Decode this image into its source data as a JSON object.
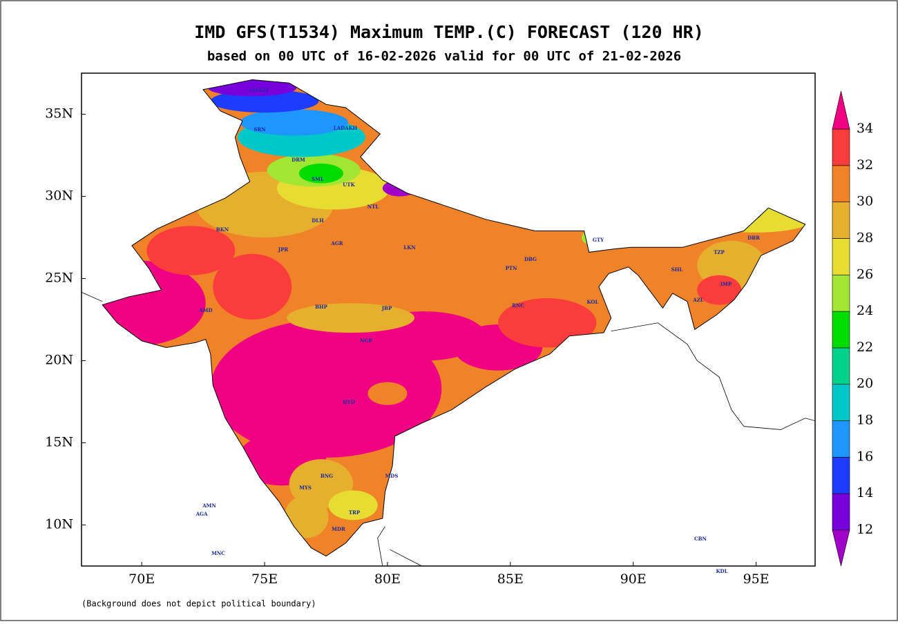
{
  "chart_data": {
    "type": "map",
    "title": "IMD GFS(T1534) Maximum TEMP.(C) FORECAST (120 HR)",
    "subtitle": "based on 00 UTC of 16-02-2026 valid for 00 UTC of 21-02-2026",
    "footnote": "(Background does not depict political boundary)",
    "xlim": [
      67.55,
      97.4
    ],
    "ylim": [
      7.5,
      37.5
    ],
    "xticks": [
      {
        "value": 70,
        "label": "70E"
      },
      {
        "value": 75,
        "label": "75E"
      },
      {
        "value": 80,
        "label": "80E"
      },
      {
        "value": 85,
        "label": "85E"
      },
      {
        "value": 90,
        "label": "90E"
      },
      {
        "value": 95,
        "label": "95E"
      }
    ],
    "yticks": [
      {
        "value": 10,
        "label": "10N"
      },
      {
        "value": 15,
        "label": "15N"
      },
      {
        "value": 20,
        "label": "20N"
      },
      {
        "value": 25,
        "label": "25N"
      },
      {
        "value": 30,
        "label": "30N"
      },
      {
        "value": 35,
        "label": "35N"
      }
    ],
    "colorbar": {
      "levels": [
        12,
        14,
        16,
        18,
        20,
        22,
        24,
        26,
        28,
        30,
        32,
        34
      ],
      "colors": [
        "#a000c8",
        "#7800dc",
        "#1e3cff",
        "#1e96ff",
        "#00c8c8",
        "#00d28c",
        "#00dc00",
        "#a0e632",
        "#e6dc32",
        "#e6af2d",
        "#f08228",
        "#fa3c3c",
        "#f00082"
      ]
    },
    "stations": [
      "GILGIT",
      "SRN",
      "LADAKH",
      "DRM",
      "SML",
      "UTK",
      "NTL",
      "DLH",
      "BKN",
      "JPR",
      "AGR",
      "LKN",
      "PTN",
      "DBG",
      "GTY",
      "SHL",
      "TZP",
      "DBR",
      "IMP",
      "AZL",
      "KOL",
      "RNC",
      "JBP",
      "AMD",
      "BHP",
      "NGP",
      "HYD",
      "MDS",
      "BNG",
      "MYS",
      "TRP",
      "MDR",
      "AMN",
      "AGA",
      "MNC",
      "CBN",
      "KDL"
    ]
  }
}
